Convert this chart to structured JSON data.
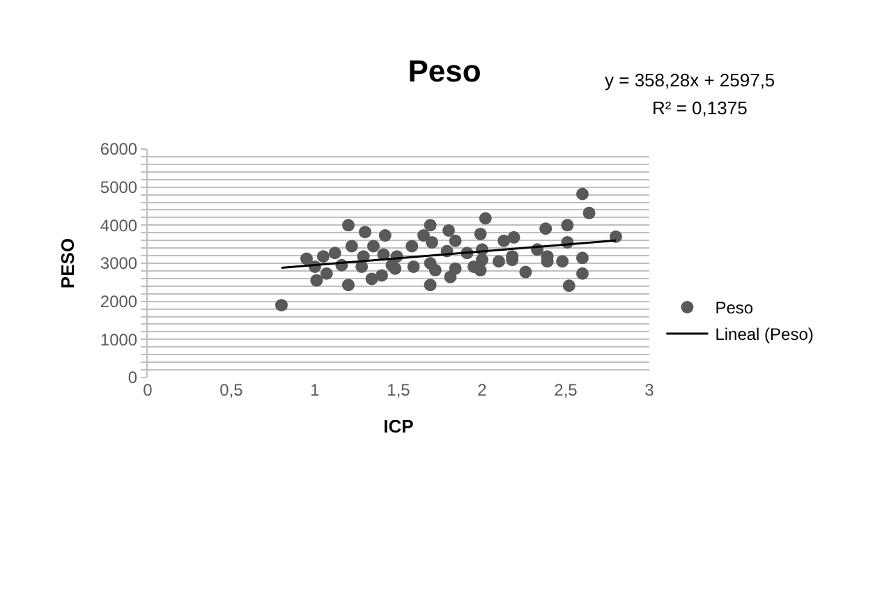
{
  "chart_data": {
    "type": "scatter",
    "title": "Peso",
    "xlabel": "ICP",
    "ylabel": "PESO",
    "annotations": [
      "y = 358,28x + 2597,5",
      "R² = 0,1375"
    ],
    "x": [
      0.8,
      0.95,
      1.0,
      1.01,
      1.07,
      1.05,
      1.12,
      1.2,
      1.22,
      1.2,
      1.3,
      1.29,
      1.16,
      1.28,
      1.35,
      1.42,
      1.34,
      1.4,
      1.41,
      1.46,
      1.49,
      1.48,
      1.58,
      1.59,
      1.65,
      1.69,
      1.7,
      1.69,
      1.69,
      1.72,
      1.79,
      1.8,
      1.81,
      1.84,
      1.84,
      1.91,
      1.95,
      1.99,
      2.0,
      2.02,
      1.99,
      2.0,
      2.1,
      2.13,
      2.18,
      2.19,
      2.18,
      2.26,
      2.33,
      2.38,
      2.39,
      2.39,
      2.48,
      2.51,
      2.51,
      2.52,
      2.6,
      2.64,
      2.6,
      2.6,
      2.8
    ],
    "series": [
      {
        "name": "Peso",
        "color": "#595959",
        "marker": "circle",
        "values": [
          1900,
          3120,
          2910,
          2550,
          2730,
          3180,
          3270,
          4000,
          3450,
          2430,
          3820,
          3180,
          2950,
          2910,
          3450,
          3730,
          2590,
          2680,
          3230,
          2950,
          3180,
          2860,
          3450,
          2910,
          3730,
          4000,
          3550,
          3000,
          2430,
          2820,
          3320,
          3860,
          2640,
          2860,
          3590,
          3270,
          2910,
          3770,
          3360,
          4180,
          2820,
          3090,
          3050,
          3590,
          3180,
          3680,
          3090,
          2770,
          3360,
          3910,
          3180,
          3050,
          3050,
          4000,
          3550,
          2410,
          4820,
          4320,
          3140,
          2730,
          3700
        ]
      },
      {
        "name": "Lineal (Peso)",
        "type": "line",
        "color": "#000000",
        "marker": "none",
        "line_style": "solid",
        "x": [
          0.8,
          2.8
        ],
        "values": [
          2880,
          3600
        ]
      }
    ],
    "xlim": [
      0,
      3
    ],
    "ylim": [
      0,
      6000
    ],
    "xticks": [
      0,
      {
        "value": 0.5,
        "label": "0,5"
      },
      1,
      {
        "value": 1.5,
        "label": "1,5"
      },
      2,
      {
        "value": 2.5,
        "label": "2,5"
      },
      3
    ],
    "yticks": [
      0,
      {
        "value": 200,
        "label": null
      },
      {
        "value": 400,
        "label": null
      },
      {
        "value": 600,
        "label": null
      },
      {
        "value": 800,
        "label": null
      },
      1000,
      {
        "value": 1200,
        "label": null
      },
      {
        "value": 1400,
        "label": null
      },
      {
        "value": 1600,
        "label": null
      },
      {
        "value": 1800,
        "label": null
      },
      2000,
      {
        "value": 2200,
        "label": null
      },
      {
        "value": 2400,
        "label": null
      },
      {
        "value": 2600,
        "label": null
      },
      {
        "value": 2800,
        "label": null
      },
      3000,
      {
        "value": 3200,
        "label": null
      },
      {
        "value": 3400,
        "label": null
      },
      {
        "value": 3600,
        "label": null
      },
      {
        "value": 3800,
        "label": null
      },
      4000,
      {
        "value": 4200,
        "label": null
      },
      {
        "value": 4400,
        "label": null
      },
      {
        "value": 4600,
        "label": null
      },
      {
        "value": 4800,
        "label": null
      },
      5000,
      {
        "value": 5200,
        "label": null
      },
      {
        "value": 5400,
        "label": null
      },
      {
        "value": 5600,
        "label": null
      },
      {
        "value": 5800,
        "label": null
      },
      6000
    ],
    "grid": "y",
    "legend": "right"
  }
}
